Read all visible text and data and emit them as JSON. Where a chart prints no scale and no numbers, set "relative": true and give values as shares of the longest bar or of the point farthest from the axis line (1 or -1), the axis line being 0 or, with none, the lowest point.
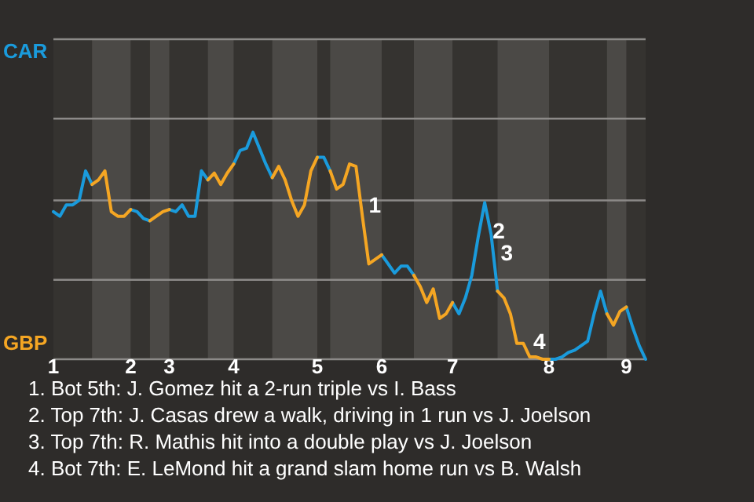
{
  "chart_data": {
    "type": "line",
    "relative": true,
    "categories": [
      "1",
      null,
      null,
      null,
      null,
      null,
      null,
      null,
      null,
      null,
      null,
      null,
      "2",
      null,
      null,
      null,
      null,
      null,
      "3",
      null,
      null,
      null,
      null,
      null,
      null,
      null,
      null,
      null,
      "4",
      null,
      null,
      null,
      null,
      null,
      null,
      null,
      null,
      null,
      null,
      null,
      null,
      "5",
      null,
      null,
      null,
      null,
      null,
      null,
      null,
      null,
      null,
      "6",
      null,
      null,
      null,
      null,
      null,
      null,
      null,
      null,
      null,
      null,
      "7",
      null,
      null,
      null,
      null,
      null,
      null,
      null,
      null,
      null,
      null,
      null,
      null,
      null,
      null,
      "8",
      null,
      null,
      null,
      null,
      null,
      null,
      null,
      null,
      null,
      null,
      null,
      "9",
      null,
      null,
      null
    ],
    "series": [
      {
        "color": "#1a9bdc",
        "values": [
          0.65,
          0.63,
          0.68,
          0.68,
          0.7,
          0.83,
          0.77,
          null,
          null,
          null,
          null,
          null,
          0.66,
          0.65,
          0.62,
          0.61,
          null,
          null,
          0.66,
          0.65,
          0.68,
          0.63,
          0.63,
          0.83,
          0.79,
          null,
          null,
          null,
          0.86,
          0.92,
          0.93,
          1,
          0.93,
          0.86,
          0.8,
          null,
          null,
          null,
          null,
          null,
          null,
          0.89,
          0.89,
          0.83,
          null,
          null,
          null,
          null,
          null,
          null,
          null,
          0.46,
          0.42,
          0.38,
          0.41,
          0.41,
          0.37,
          null,
          null,
          null,
          null,
          null,
          0.25,
          0.2,
          0.27,
          0.37,
          0.54,
          0.69,
          0.55,
          0.3,
          null,
          null,
          null,
          null,
          null,
          null,
          null,
          0.0,
          0.0,
          0.01,
          0.03,
          0.04,
          0.06,
          0.08,
          0.2,
          0.3,
          0.2,
          null,
          null,
          0.23,
          0.14,
          0.06,
          0.0
        ]
      },
      {
        "color": "#f5a623",
        "values": [
          null,
          null,
          null,
          null,
          null,
          null,
          0.77,
          0.79,
          0.83,
          0.65,
          0.63,
          0.63,
          0.66,
          null,
          null,
          0.61,
          0.63,
          0.65,
          0.66,
          null,
          null,
          null,
          null,
          null,
          0.79,
          0.82,
          0.77,
          0.82,
          0.86,
          null,
          null,
          null,
          null,
          null,
          0.8,
          0.85,
          0.79,
          0.7,
          0.63,
          0.68,
          0.83,
          0.89,
          null,
          0.83,
          0.75,
          0.77,
          0.86,
          0.85,
          0.63,
          0.42,
          0.44,
          0.46,
          null,
          null,
          null,
          null,
          0.37,
          0.32,
          0.25,
          0.31,
          0.18,
          0.2,
          0.25,
          null,
          null,
          null,
          null,
          null,
          null,
          0.3,
          0.27,
          0.2,
          0.07,
          0.07,
          0.01,
          0.01,
          0.0,
          0.0,
          null,
          null,
          null,
          null,
          null,
          null,
          null,
          null,
          0.2,
          0.15,
          0.21,
          0.23,
          null,
          null,
          null
        ]
      }
    ],
    "ref_lines": [
      {
        "axis": "y",
        "value": 0.35,
        "color": "#8c8a88"
      },
      {
        "axis": "y",
        "value": 0.7,
        "color": "#8c8a88"
      },
      {
        "axis": "y",
        "value": 1.06,
        "color": "#8c8a88"
      },
      {
        "axis": "y",
        "value": 1.41,
        "color": "#8c8a88"
      }
    ],
    "annotations": [
      "CAR",
      "GBP",
      "1",
      "2",
      "3",
      "4",
      "1. Bot 5th: J. Gomez hit a 2-run triple vs I. Bass",
      "2. Top 7th: J. Casas drew a walk, driving in 1 run vs J. Joelson",
      "3. Top 7th: R. Mathis hit into a double play vs J. Joelson",
      "4. Bot 7th: E. LeMond hit a grand slam home run vs B. Walsh"
    ]
  }
}
